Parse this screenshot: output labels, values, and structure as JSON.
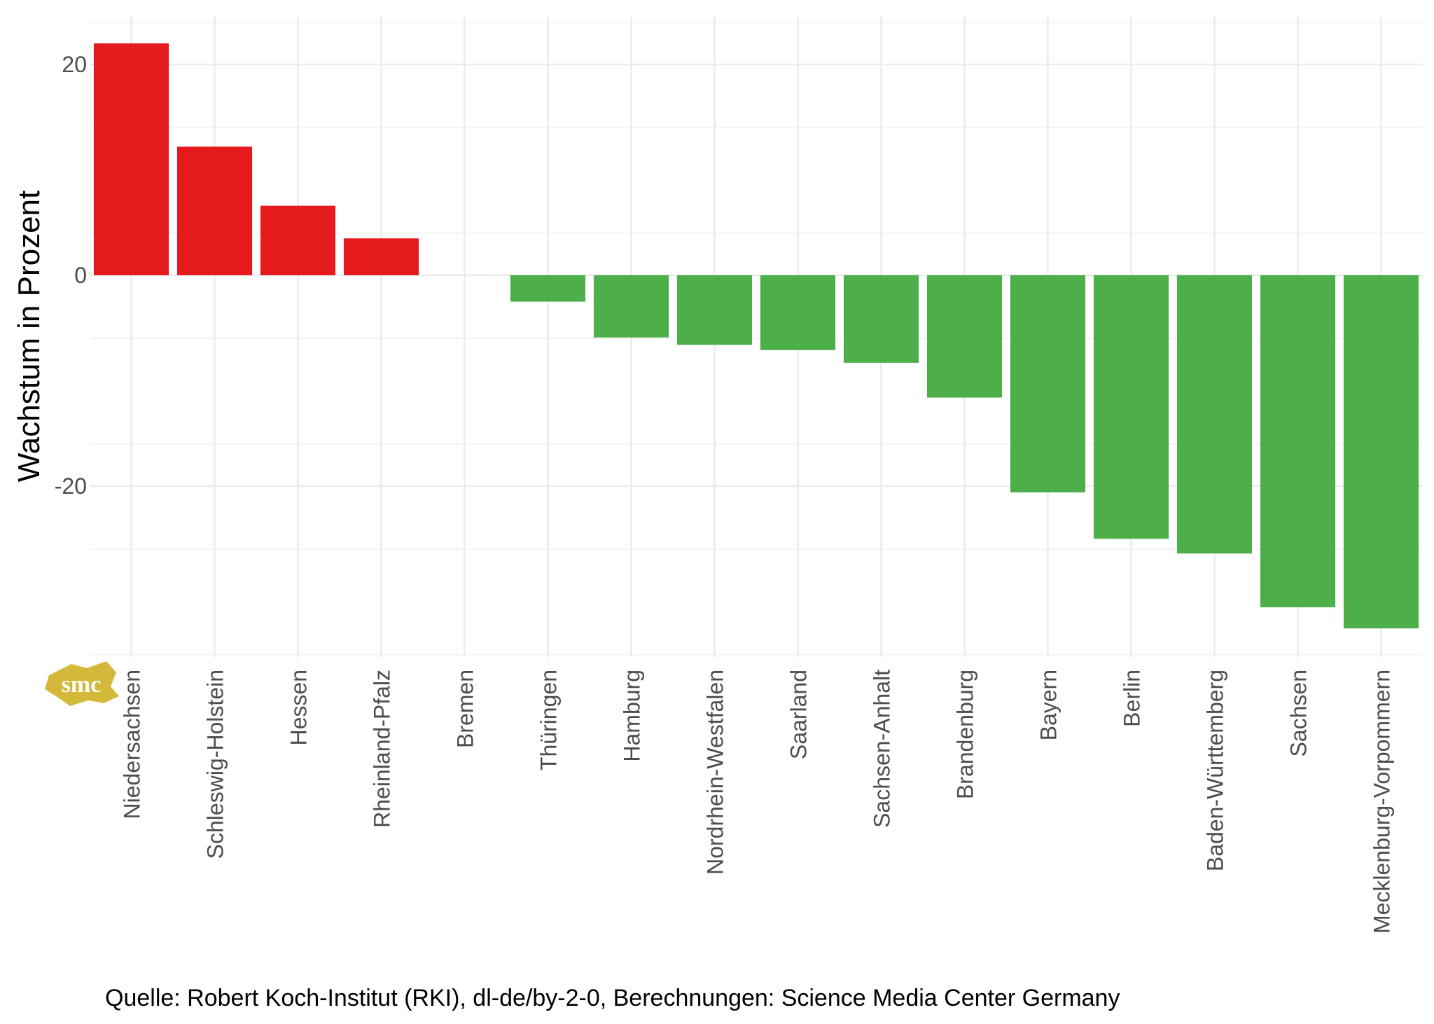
{
  "chart_data": {
    "type": "bar",
    "ylabel": "Wachstum in Prozent",
    "xlabel": "",
    "ylim": [
      -36,
      25
    ],
    "yticks": [
      -20,
      0,
      20
    ],
    "grid": true,
    "colors": {
      "positive": "#e41a1c",
      "negative": "#4daf4a"
    },
    "categories": [
      "Niedersachsen",
      "Schleswig-Holstein",
      "Hessen",
      "Rheinland-Pfalz",
      "Bremen",
      "Thüringen",
      "Hamburg",
      "Nordrhein-Westfalen",
      "Saarland",
      "Sachsen-Anhalt",
      "Brandenburg",
      "Bayern",
      "Berlin",
      "Baden-Württemberg",
      "Sachsen",
      "Mecklenburg-Vorpommern"
    ],
    "values": [
      22.0,
      12.2,
      6.6,
      3.5,
      0.0,
      -2.5,
      -5.9,
      -6.6,
      -7.1,
      -8.3,
      -11.6,
      -20.6,
      -25.0,
      -26.4,
      -31.5,
      -33.5
    ]
  },
  "caption": "Quelle: Robert Koch-Institut (RKI), dl-de/by-2-0, Berechnungen: Science Media Center Germany",
  "logo": {
    "text": "smc",
    "color": "#d4b83a"
  }
}
